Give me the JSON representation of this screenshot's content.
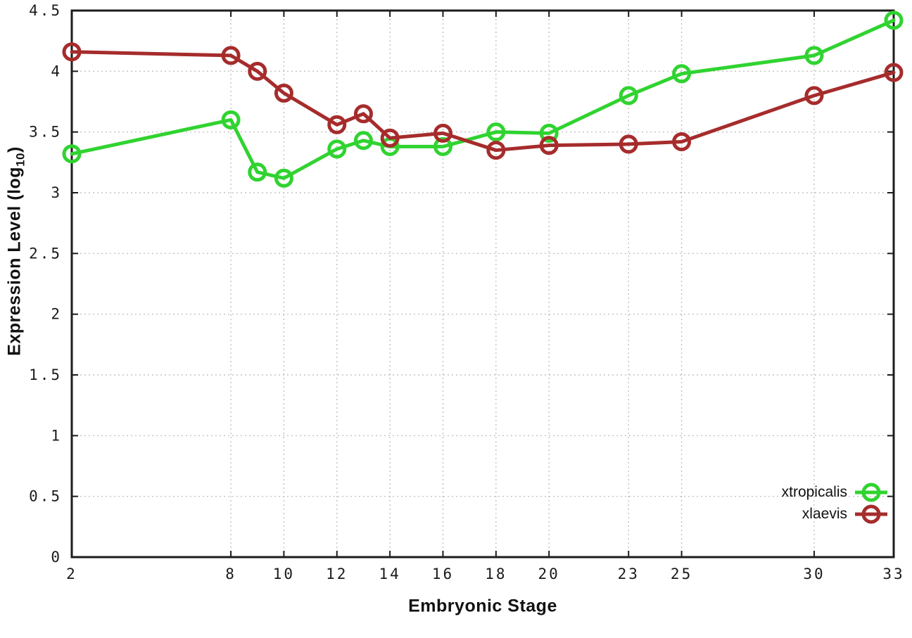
{
  "chart_data": {
    "type": "line",
    "x": [
      2,
      8,
      9,
      10,
      12,
      13,
      14,
      16,
      18,
      20,
      23,
      25,
      30,
      33
    ],
    "series": [
      {
        "name": "xtropicalis",
        "color": "#30d330",
        "values": [
          3.32,
          3.6,
          3.17,
          3.12,
          3.36,
          3.43,
          3.38,
          3.38,
          3.5,
          3.49,
          3.8,
          3.98,
          4.13,
          4.42
        ]
      },
      {
        "name": "xlaevis",
        "color": "#a62c2c",
        "values": [
          4.16,
          4.13,
          4.0,
          3.82,
          3.56,
          3.65,
          3.45,
          3.49,
          3.35,
          3.39,
          3.4,
          3.42,
          3.8,
          3.99
        ]
      }
    ],
    "title": "",
    "xlabel": "Embryonic Stage",
    "ylabel": "Expression Level (log10)",
    "ylabel_parts": {
      "main": "Expression Level (log",
      "sub": "10",
      "end": ")"
    },
    "xlim": [
      2,
      33
    ],
    "ylim": [
      0,
      4.5
    ],
    "xticks": [
      2,
      8,
      10,
      12,
      14,
      16,
      18,
      20,
      23,
      25,
      30,
      33
    ],
    "yticks": [
      0,
      0.5,
      1,
      1.5,
      2,
      2.5,
      3,
      3.5,
      4,
      4.5
    ],
    "grid": true,
    "legend_position": "bottom-right",
    "marker": "open-circle"
  },
  "style_colors": {
    "axis_border": "#1c1c1c",
    "tick_text": "#1a1a1a",
    "gridline": "#b8b8b8",
    "background": "#ffffff"
  }
}
